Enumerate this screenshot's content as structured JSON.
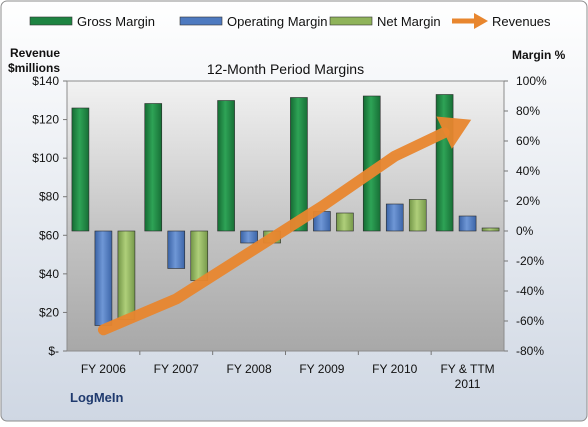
{
  "chart_data": {
    "type": "bar",
    "title": "12-Month Period Margins",
    "company": "LogMeIn",
    "left_axis_label_line1": "Revenue",
    "left_axis_label_line2": "$millions",
    "right_axis_label": "Margin %",
    "categories": [
      "FY 2006",
      "FY 2007",
      "FY 2008",
      "FY 2009",
      "FY 2010",
      "FY & TTM 2011"
    ],
    "category_lines": [
      [
        "FY 2006"
      ],
      [
        "FY 2007"
      ],
      [
        "FY 2008"
      ],
      [
        "FY 2009"
      ],
      [
        "FY 2010"
      ],
      [
        "FY & TTM",
        "2011"
      ]
    ],
    "left_axis": {
      "min": 0,
      "max": 140,
      "step": 20,
      "tick_labels": [
        "$-",
        "$20",
        "$40",
        "$60",
        "$80",
        "$100",
        "$120",
        "$140"
      ]
    },
    "right_axis": {
      "min": -80,
      "max": 100,
      "step": 20,
      "tick_labels": [
        "-80%",
        "-60%",
        "-40%",
        "-20%",
        "0%",
        "20%",
        "40%",
        "60%",
        "80%",
        "100%"
      ]
    },
    "series": [
      {
        "name": "Gross Margin",
        "axis": "right",
        "kind": "bar",
        "color": "#1E8442",
        "values": [
          82,
          85,
          87,
          89,
          90,
          91
        ]
      },
      {
        "name": "Operating Margin",
        "axis": "right",
        "kind": "bar",
        "color": "#4E7AC0",
        "values": [
          -63,
          -25,
          -8,
          13,
          18,
          10
        ]
      },
      {
        "name": "Net Margin",
        "axis": "right",
        "kind": "bar",
        "color": "#8FB35A",
        "values": [
          -59,
          -33,
          -8,
          12,
          21,
          2
        ]
      },
      {
        "name": "Revenues",
        "axis": "left",
        "kind": "arrow-line",
        "color": "#E8862E",
        "values": [
          11,
          27,
          51,
          75,
          101,
          119
        ]
      }
    ],
    "legend_position": "top",
    "grid": false
  }
}
